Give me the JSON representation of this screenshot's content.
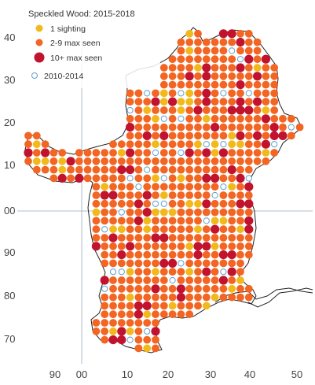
{
  "map": {
    "title": "Speckled Wood:  2015-2018",
    "legend": [
      {
        "label": "1 sighting",
        "category": "one",
        "color": "#f2b91c"
      },
      {
        "label": "2-9 max seen",
        "category": "few",
        "color": "#f26522"
      },
      {
        "label": "10+ max seen",
        "category": "many",
        "color": "#c1122e"
      },
      {
        "label": "2010-2014",
        "category": "old",
        "color": "#5aa0d8"
      }
    ],
    "x_ticks": [
      "90",
      "00",
      "10",
      "20",
      "30",
      "40",
      "50"
    ],
    "y_ticks": [
      "70",
      "80",
      "90",
      "00",
      "10",
      "20",
      "30",
      "40"
    ]
  },
  "chart_data": {
    "type": "scatter",
    "title": "Speckled Wood:  2015-2018",
    "xlabel": "",
    "ylabel": "",
    "x_ticks": [
      "90",
      "00",
      "10",
      "20",
      "30",
      "40",
      "50"
    ],
    "y_ticks": [
      "70",
      "80",
      "90",
      "00",
      "10",
      "20",
      "30",
      "40"
    ],
    "series": [
      {
        "name": "1 sighting",
        "color": "#f2b91c"
      },
      {
        "name": "2-9 max seen",
        "color": "#f26522"
      },
      {
        "name": "10+ max seen",
        "color": "#c1122e"
      },
      {
        "name": "2010-2014",
        "color": "#5aa0d8"
      }
    ],
    "grid": true,
    "legend_position": "top-left"
  }
}
